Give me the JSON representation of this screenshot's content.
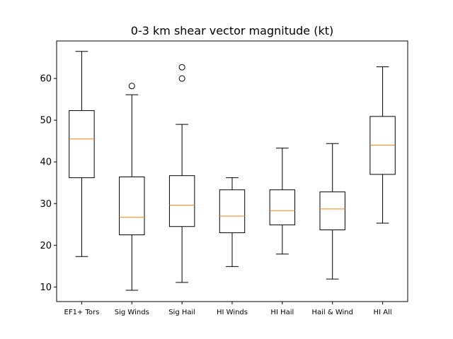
{
  "chart_data": {
    "type": "box",
    "title": "0-3 km shear vector magnitude (kt)",
    "xlabel": "",
    "ylabel": "",
    "ylim": [
      6.5,
      69
    ],
    "yticks": [
      10,
      20,
      30,
      40,
      50,
      60
    ],
    "grid": false,
    "colors": {
      "box": "#000000",
      "median": "#ff7f0e",
      "flier": "#000000"
    },
    "categories": [
      "EF1+ Tors",
      "Sig Winds",
      "Sig Hail",
      "HI Winds",
      "HI Hail",
      "Hail & Wind",
      "HI All"
    ],
    "boxes": [
      {
        "category": "EF1+ Tors",
        "whisker_low": 17.3,
        "q1": 36.2,
        "median": 45.5,
        "q3": 52.3,
        "whisker_high": 66.5,
        "fliers": []
      },
      {
        "category": "Sig Winds",
        "whisker_low": 9.2,
        "q1": 22.5,
        "median": 26.7,
        "q3": 36.4,
        "whisker_high": 56.1,
        "fliers": [
          58.2
        ]
      },
      {
        "category": "Sig Hail",
        "whisker_low": 11.1,
        "q1": 24.5,
        "median": 29.6,
        "q3": 36.7,
        "whisker_high": 49.0,
        "fliers": [
          60.0,
          62.7
        ]
      },
      {
        "category": "HI Winds",
        "whisker_low": 14.9,
        "q1": 23.0,
        "median": 27.0,
        "q3": 33.3,
        "whisker_high": 36.2,
        "fliers": []
      },
      {
        "category": "HI Hail",
        "whisker_low": 17.9,
        "q1": 24.9,
        "median": 28.3,
        "q3": 33.3,
        "whisker_high": 43.3,
        "fliers": []
      },
      {
        "category": "Hail & Wind",
        "whisker_low": 11.9,
        "q1": 23.7,
        "median": 28.7,
        "q3": 32.8,
        "whisker_high": 44.4,
        "fliers": []
      },
      {
        "category": "HI All",
        "whisker_low": 25.3,
        "q1": 37.0,
        "median": 44.0,
        "q3": 50.9,
        "whisker_high": 62.8,
        "fliers": []
      }
    ]
  }
}
